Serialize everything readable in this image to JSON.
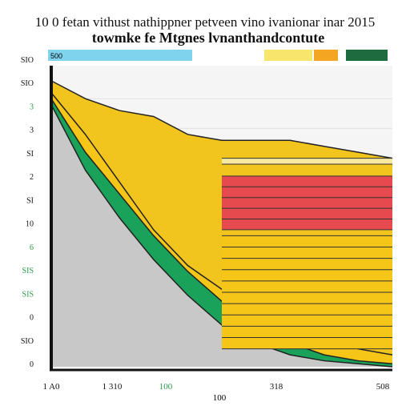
{
  "chart_data": {
    "type": "area",
    "title": "10 0 fetan vithust nathippner petveen vino ivanionar inar 2015",
    "subtitle": "towmke fe Mtgnes lvnanthandcontute",
    "legend": {
      "placement": "top",
      "entries": [
        {
          "label": "500",
          "color": "#7fd3ec"
        },
        {
          "label": "",
          "color": "#f7e66b"
        },
        {
          "label": "",
          "color": "#f4a623"
        },
        {
          "label": "",
          "color": "#1e6b3f"
        }
      ]
    },
    "y_tick_labels": [
      "SIO",
      "SIO",
      "3",
      "3",
      "SI",
      "2",
      "SI",
      "10",
      "6",
      "SIS",
      "SIS",
      "0",
      "SIO",
      "0"
    ],
    "y_tick_colors": [
      "#111111",
      "#111111",
      "#2b9a4a",
      "#111111",
      "#111111",
      "#111111",
      "#111111",
      "#111111",
      "#2b9a4a",
      "#2b9a4a",
      "#2b9a4a",
      "#111111",
      "#111111",
      "#111111"
    ],
    "x_tick_labels": [
      "1 A0",
      "1 310",
      "100",
      "318",
      "508"
    ],
    "x_tick_colors": [
      "#111111",
      "#111111",
      "#2b9a4a",
      "#111111",
      "#111111"
    ],
    "xlabel": "100",
    "grid": true,
    "x": [
      0,
      10,
      20,
      30,
      40,
      50,
      60,
      70,
      80,
      90,
      100
    ],
    "ylim": [
      0,
      100
    ],
    "series": [
      {
        "color": "#f2c51e",
        "values": [
          96,
          90,
          86,
          84,
          78,
          76,
          76,
          76,
          74,
          72,
          70
        ]
      },
      {
        "color": "#f5c518",
        "values": [
          92,
          78,
          62,
          46,
          34,
          26,
          20,
          14,
          10,
          6,
          4
        ]
      },
      {
        "color": "#1aa15a",
        "values": [
          90,
          72,
          58,
          44,
          32,
          22,
          14,
          8,
          4,
          2,
          1
        ]
      },
      {
        "color": "#c8c8c8",
        "values": [
          88,
          66,
          50,
          36,
          24,
          14,
          8,
          4,
          2,
          1,
          0
        ]
      }
    ],
    "bands": [
      {
        "color": "#f7e9a0",
        "from": 68,
        "to": 70
      },
      {
        "color": "#e64a4f",
        "from": 46,
        "to": 64
      },
      {
        "color": "#f5c518",
        "from": 6,
        "to": 44
      }
    ]
  }
}
